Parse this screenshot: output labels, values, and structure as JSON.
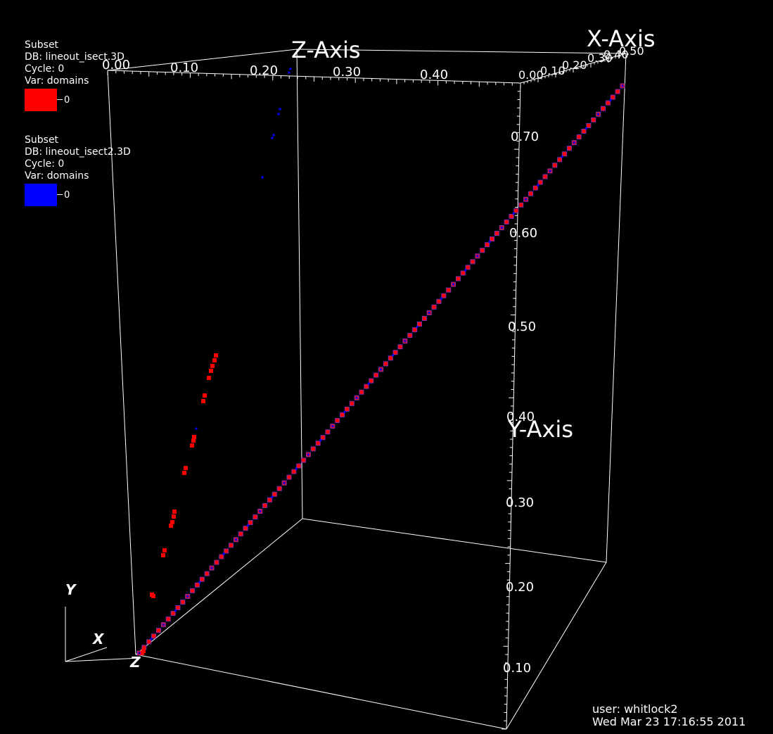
{
  "legends": [
    {
      "title": "Subset",
      "db": "DB: lineout_isect.3D",
      "cycle": "Cycle: 0",
      "var": "Var: domains",
      "color": "#ff0000",
      "tick_label": "0"
    },
    {
      "title": "Subset",
      "db": "DB: lineout_isect2.3D",
      "cycle": "Cycle: 0",
      "var": "Var: domains",
      "color": "#0000ff",
      "tick_label": "0"
    }
  ],
  "user_info": {
    "user": "user: whitlock2",
    "timestamp": "Wed Mar 23 17:16:55 2011"
  },
  "triad": {
    "x": "X",
    "y": "Y",
    "z": "Z"
  },
  "chart_data": {
    "type": "scatter",
    "title": "",
    "axes": {
      "x_title": "X-Axis",
      "y_title": "Y-Axis",
      "z_title": "Z-Axis",
      "x_ticks": [
        "0.00",
        "0.10",
        "0.20",
        "0.30",
        "0.40",
        "0.50"
      ],
      "y_ticks": [
        "0.10",
        "0.20",
        "0.30",
        "0.40",
        "0.50",
        "0.60",
        "0.70"
      ],
      "z_ticks": [
        "0.00",
        "0.10",
        "0.20",
        "0.30",
        "0.40"
      ],
      "x_range": [
        0.0,
        0.5
      ],
      "y_range": [
        0.0,
        0.78
      ],
      "z_range": [
        0.0,
        0.5
      ]
    },
    "series": [
      {
        "color": "#ff0000",
        "points": []
      },
      {
        "color": "#0000ff",
        "points": []
      }
    ],
    "bounding_box": true,
    "background": "#000000"
  }
}
